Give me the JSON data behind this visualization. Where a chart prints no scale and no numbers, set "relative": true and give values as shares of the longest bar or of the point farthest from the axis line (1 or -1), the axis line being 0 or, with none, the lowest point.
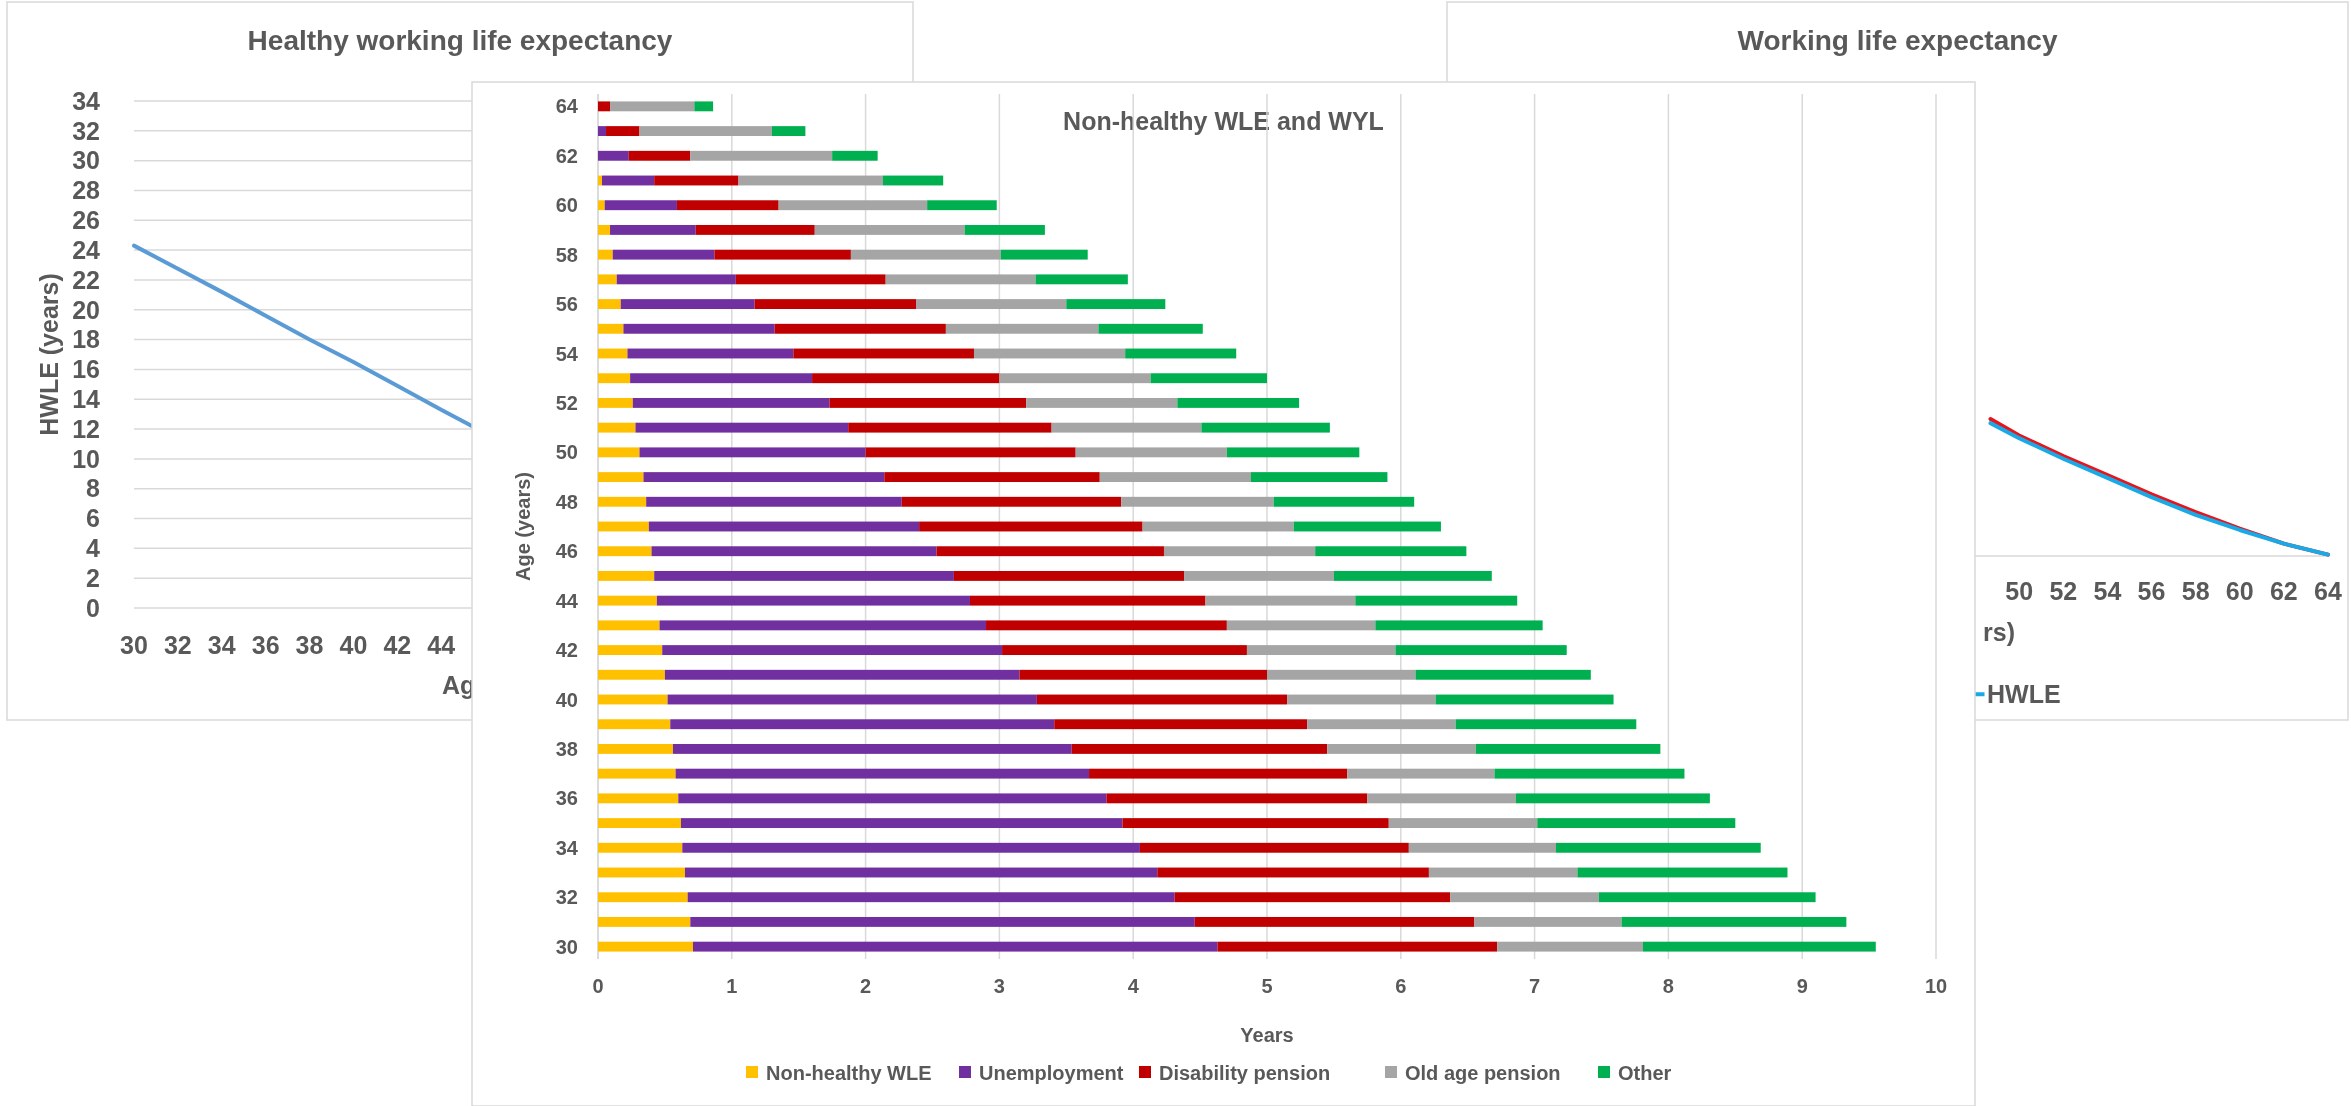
{
  "chart_data": [
    {
      "type": "line",
      "title": "Healthy working life expectancy",
      "xlabel": "Ag",
      "ylabel": "HWLE (years)",
      "x": [
        30,
        32,
        34,
        36,
        38,
        40,
        42,
        44,
        45.4
      ],
      "series": [
        {
          "color": "#5b9bd5",
          "values": [
            24.3,
            22.75,
            21.2,
            19.6,
            18.0,
            16.5,
            14.9,
            13.3,
            12.2
          ]
        }
      ],
      "xlim": [
        30,
        64
      ],
      "ylim": [
        0,
        34
      ],
      "xticks": [
        30,
        32,
        34,
        36,
        38,
        40,
        42,
        44
      ],
      "yticks": [
        0,
        2,
        4,
        6,
        8,
        10,
        12,
        14,
        16,
        18,
        20,
        22,
        24,
        26,
        28,
        30,
        32,
        34
      ],
      "grid": "y"
    },
    {
      "type": "bar",
      "orientation": "horizontal",
      "stacked": true,
      "title": "Non-healthy WLE and WYL",
      "xlabel": "Years",
      "ylabel": "Age (years)",
      "categories": [
        "64",
        null,
        "62",
        null,
        "60",
        null,
        "58",
        null,
        "56",
        null,
        "54",
        null,
        "52",
        null,
        "50",
        null,
        "48",
        null,
        "46",
        null,
        "44",
        null,
        "42",
        null,
        "40",
        null,
        "38",
        null,
        "36",
        null,
        "34",
        null,
        "32",
        null,
        "30"
      ],
      "series": [
        {
          "name": "Non-healthy WLE",
          "color": "#ffc000",
          "values": [
            0,
            0,
            0,
            0.03,
            0.05,
            0.09,
            0.11,
            0.14,
            0.17,
            0.19,
            0.22,
            0.24,
            0.26,
            0.28,
            0.31,
            0.34,
            0.36,
            0.38,
            0.4,
            0.42,
            0.44,
            0.46,
            0.48,
            0.5,
            0.52,
            0.54,
            0.56,
            0.58,
            0.6,
            0.62,
            0.63,
            0.65,
            0.67,
            0.69,
            0.71
          ]
        },
        {
          "name": "Unemployment",
          "color": "#7030a0",
          "values": [
            0,
            0.06,
            0.23,
            0.39,
            0.54,
            0.64,
            0.76,
            0.89,
            1.0,
            1.13,
            1.24,
            1.36,
            1.47,
            1.59,
            1.69,
            1.8,
            1.91,
            2.02,
            2.13,
            2.24,
            2.34,
            2.44,
            2.54,
            2.65,
            2.76,
            2.87,
            2.98,
            3.09,
            3.2,
            3.3,
            3.42,
            3.53,
            3.64,
            3.77,
            3.92
          ]
        },
        {
          "name": "Disability pension",
          "color": "#c00000",
          "values": [
            0.09,
            0.25,
            0.46,
            0.63,
            0.76,
            0.89,
            1.02,
            1.12,
            1.21,
            1.28,
            1.35,
            1.4,
            1.47,
            1.52,
            1.57,
            1.61,
            1.64,
            1.67,
            1.7,
            1.72,
            1.76,
            1.8,
            1.83,
            1.85,
            1.87,
            1.89,
            1.91,
            1.93,
            1.95,
            1.99,
            2.01,
            2.03,
            2.06,
            2.09,
            2.09
          ]
        },
        {
          "name": "Old age pension",
          "color": "#a5a5a5",
          "values": [
            0.63,
            0.99,
            1.06,
            1.08,
            1.11,
            1.12,
            1.12,
            1.12,
            1.12,
            1.14,
            1.13,
            1.13,
            1.13,
            1.12,
            1.13,
            1.13,
            1.14,
            1.13,
            1.13,
            1.12,
            1.12,
            1.11,
            1.11,
            1.11,
            1.11,
            1.11,
            1.11,
            1.1,
            1.11,
            1.11,
            1.1,
            1.11,
            1.11,
            1.1,
            1.09
          ]
        },
        {
          "name": "Other",
          "color": "#00b050",
          "values": [
            0.14,
            0.25,
            0.34,
            0.45,
            0.52,
            0.6,
            0.65,
            0.69,
            0.74,
            0.78,
            0.83,
            0.87,
            0.91,
            0.96,
            0.99,
            1.02,
            1.05,
            1.1,
            1.13,
            1.18,
            1.21,
            1.25,
            1.28,
            1.31,
            1.33,
            1.35,
            1.38,
            1.42,
            1.45,
            1.48,
            1.53,
            1.57,
            1.62,
            1.68,
            1.74
          ]
        }
      ],
      "xlim": [
        0,
        10
      ],
      "xticks": [
        0,
        1,
        2,
        3,
        4,
        5,
        6,
        7,
        8,
        9,
        10
      ],
      "grid": "x",
      "legend": "bottom"
    },
    {
      "type": "line",
      "title": "Working life expectancy",
      "xlabel": "rs)",
      "x": [
        48.7,
        50,
        52,
        54,
        56,
        58,
        60,
        62,
        64
      ],
      "series": [
        {
          "color": "#e8141b",
          "values": [
            1,
            0.88,
            0.73,
            0.59,
            0.45,
            0.32,
            0.2,
            0.09,
            0.01
          ]
        },
        {
          "name": "HWLE",
          "color": "#19a9e6",
          "values": [
            0.97,
            0.86,
            0.71,
            0.57,
            0.43,
            0.3,
            0.19,
            0.09,
            0.01
          ]
        }
      ],
      "relative": true,
      "xlim": [
        30,
        64
      ],
      "xticks": [
        50,
        52,
        54,
        56,
        58,
        60,
        62,
        64
      ],
      "legend": "bottom"
    }
  ]
}
